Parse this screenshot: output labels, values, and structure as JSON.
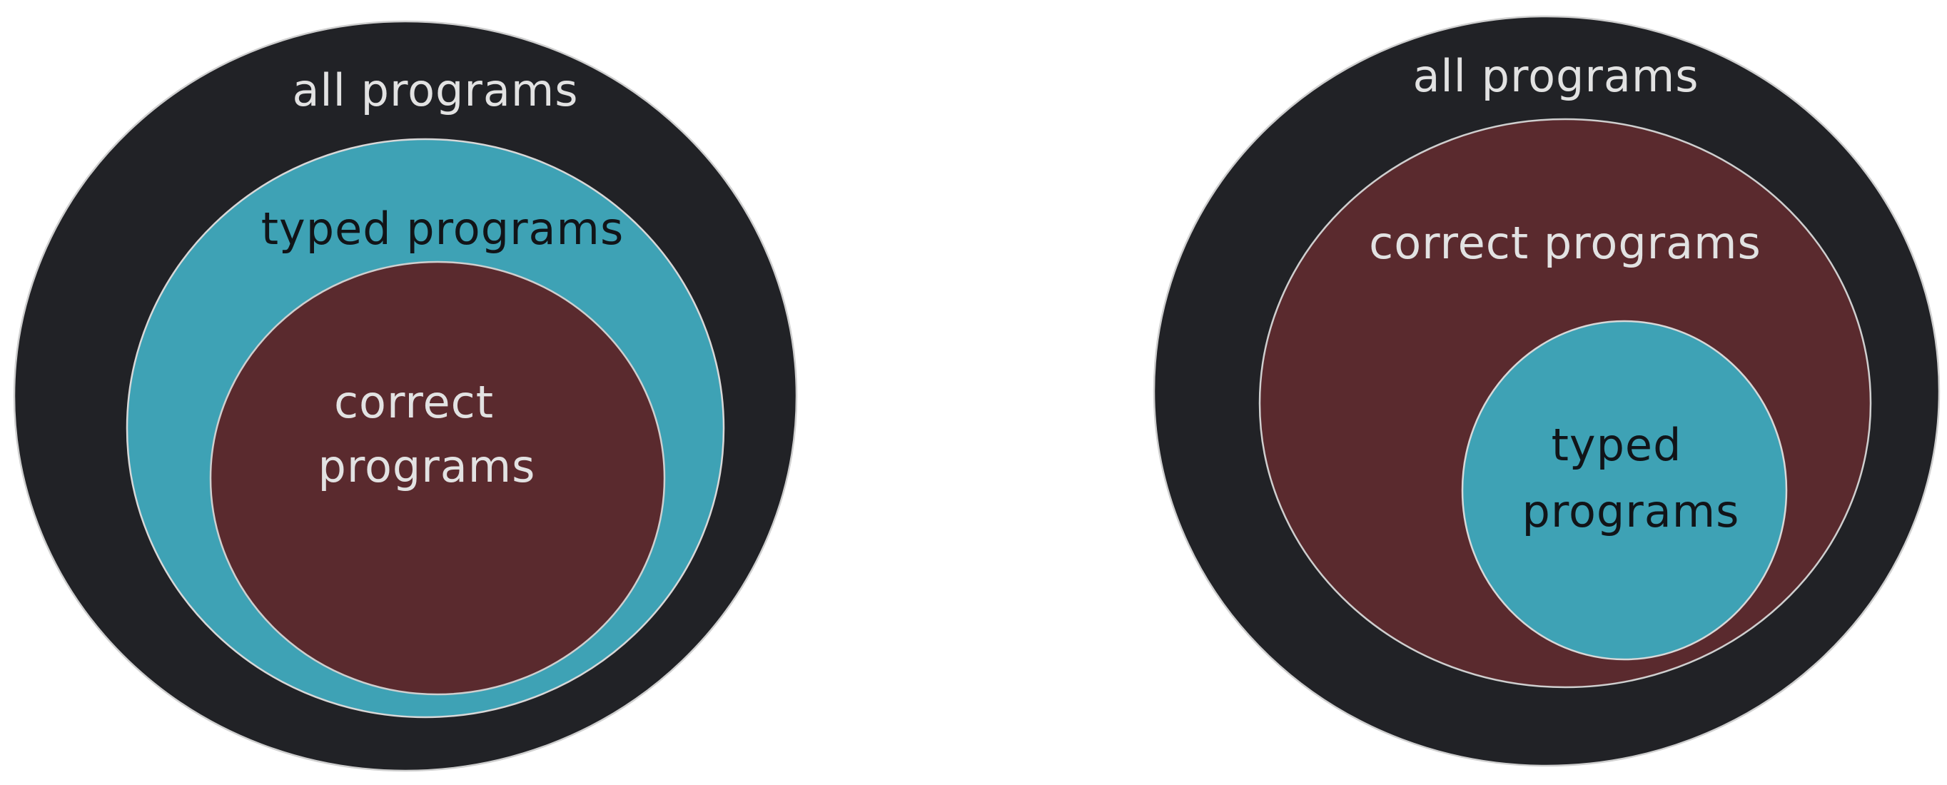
{
  "colors": {
    "background": "#ffffff",
    "all_programs_fill": "#212226",
    "typed_programs_fill": "#3ea2b5",
    "correct_programs_fill": "#5a2a2e",
    "outline": "#cfcfcf",
    "light_text": "#e2e2e2",
    "dark_text": "#111418"
  },
  "left_diagram": {
    "outer": {
      "label": "all programs"
    },
    "middle": {
      "label": "typed programs"
    },
    "inner": {
      "label_line1": "correct",
      "label_line2": "programs"
    }
  },
  "right_diagram": {
    "outer": {
      "label": "all programs"
    },
    "middle": {
      "label": "correct programs"
    },
    "inner": {
      "label_line1": "typed",
      "label_line2": "programs"
    }
  }
}
